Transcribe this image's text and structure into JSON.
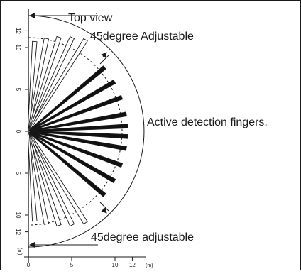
{
  "title": "Top view",
  "labels": {
    "upper_adjust": "45degree Adjustable",
    "lower_adjust": "45degree adjustable",
    "fingers": "Active detection fingers."
  },
  "y_axis": {
    "ticks": [
      {
        "label": "12",
        "value": 12
      },
      {
        "label": "10",
        "value": 10
      },
      {
        "label": "5",
        "value": 5
      },
      {
        "label": "0",
        "value": 0
      },
      {
        "label": "5",
        "value": -5
      },
      {
        "label": "10",
        "value": -10
      },
      {
        "label": "12",
        "value": -12
      }
    ],
    "unit": "(m)"
  },
  "x_axis": {
    "ticks": [
      {
        "label": "0",
        "value": 0
      },
      {
        "label": "5",
        "value": 5
      },
      {
        "label": "10",
        "value": 10
      },
      {
        "label": "12",
        "value": 12
      }
    ],
    "unit": "(m)"
  },
  "detection": {
    "range_m": 12,
    "active_fingers_deg": [
      40,
      30,
      20,
      10,
      3,
      -3,
      -10,
      -20,
      -30,
      -40
    ],
    "adjustable_fingers_deg": [
      86,
      79,
      72,
      65,
      58,
      -58,
      -65,
      -72,
      -79,
      -86
    ],
    "colors": {
      "active": "#111111",
      "outline": "#1a1a1a"
    }
  }
}
